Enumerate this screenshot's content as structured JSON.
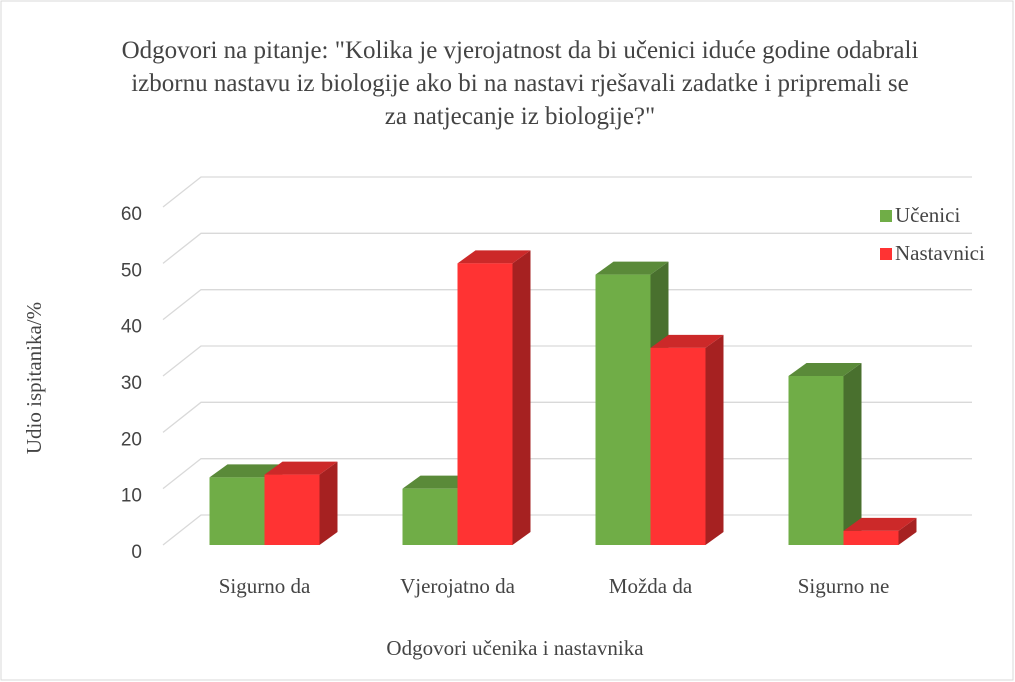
{
  "chart_data": {
    "type": "bar3d",
    "title": "Odgovori na pitanje: \"Kolika je vjerojatnost da bi učenici iduće godine odabrali izbornu nastavu iz biologije ako bi na nastavi rješavali zadatke i pripremali se za natjecanje iz biologije?\"",
    "x_label": "Odgovori učenika i nastavnika",
    "y_label": "Udio ispitanika/%",
    "categories": [
      "Sigurno da",
      "Vjerojatno da",
      "Možda da",
      "Sigurno ne"
    ],
    "series": [
      {
        "name": "Učenici",
        "color": "#70ad47",
        "values": [
          12,
          10,
          48,
          30
        ]
      },
      {
        "name": "Nastavnici",
        "color": "#ff3333",
        "values": [
          12.5,
          50,
          35,
          2.5
        ]
      }
    ],
    "ylim": [
      0,
      60
    ],
    "yticks": [
      0,
      10,
      20,
      30,
      40,
      50,
      60
    ],
    "grid": true,
    "legend": "top-right"
  }
}
